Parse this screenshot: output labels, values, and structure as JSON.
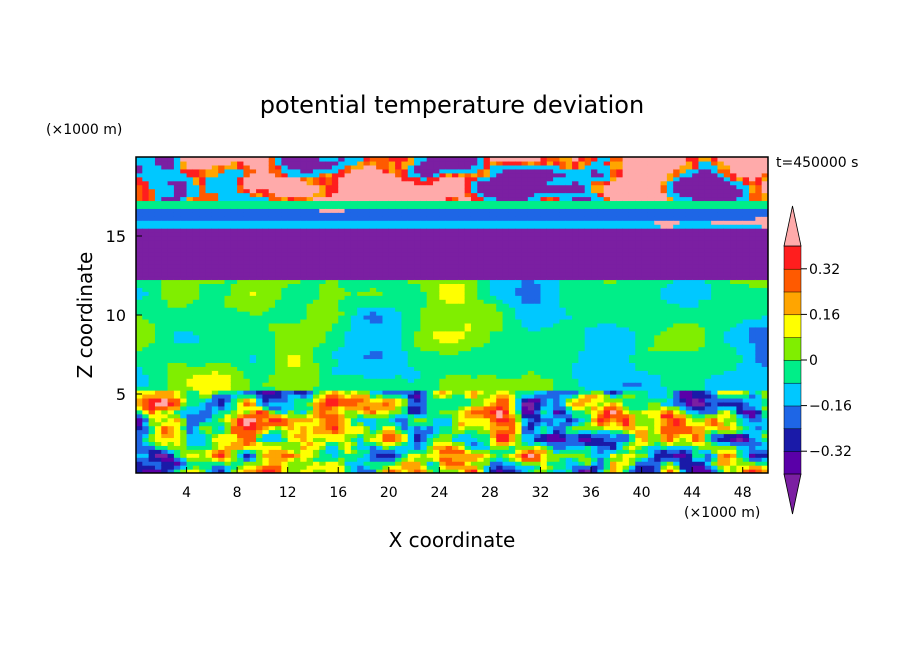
{
  "chart_data": {
    "type": "heatmap",
    "title": "potential temperature deviation",
    "xlabel": "X coordinate",
    "ylabel": "Z coordinate",
    "x_unit": "(×1000 m)",
    "y_unit": "(×1000 m)",
    "time_label": "t=450000 s",
    "xlim": [
      0,
      50
    ],
    "ylim": [
      0,
      20
    ],
    "x_ticks": [
      4,
      8,
      12,
      16,
      20,
      24,
      28,
      32,
      36,
      40,
      44,
      48
    ],
    "y_ticks": [
      5,
      10,
      15
    ],
    "colorbar": {
      "levels": [
        -0.4,
        -0.32,
        -0.24,
        -0.16,
        -0.08,
        0,
        0.08,
        0.16,
        0.24,
        0.32,
        0.4
      ],
      "tick_labels": [
        "0.32",
        "0.16",
        "0",
        "−0.16",
        "−0.32"
      ],
      "tick_values": [
        0.32,
        0.16,
        0,
        -0.16,
        -0.32
      ],
      "colors": [
        "#7b1fa2",
        "#5a00a8",
        "#1a1aa8",
        "#1e66e6",
        "#00c8ff",
        "#00ee88",
        "#80ee00",
        "#ffff00",
        "#ffa500",
        "#ff5a00",
        "#ff1e1e",
        "#ffaaaa"
      ]
    },
    "bands": [
      {
        "z0": 0,
        "z1": 5.3,
        "pattern": "turbulent",
        "value": "mixed -0.4 to 0.4"
      },
      {
        "z0": 5.3,
        "z1": 12.3,
        "pattern": "mid",
        "value": "approx -0.16 to 0.16"
      },
      {
        "z0": 12.3,
        "z1": 14.9,
        "pattern": "uniform",
        "value": -0.4
      },
      {
        "z0": 14.9,
        "z1": 17.3,
        "pattern": "layered",
        "value": "approx -0.24 to 0"
      },
      {
        "z0": 17.3,
        "z1": 20,
        "pattern": "upper",
        "value": "mostly -0.4 with 0.4 patches"
      }
    ]
  }
}
